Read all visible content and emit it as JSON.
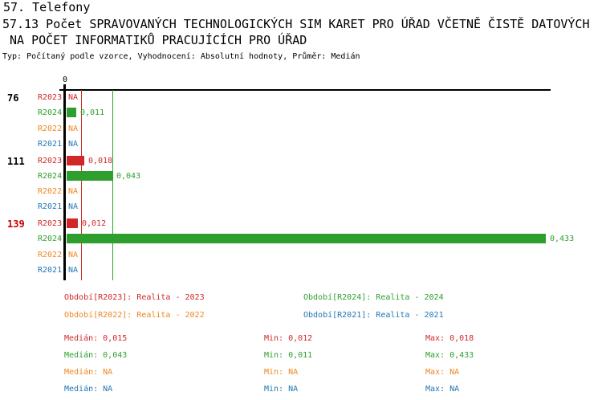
{
  "header": {
    "line1": "57. Telefony",
    "line2": "57.13 Počet SPRAVOVANÝCH TECHNOLOGICKÝCH SIM KARET PRO ÚŘAD VČETNĚ ČISTĚ DATOVÝCH",
    "line3": " NA POČET INFORMATIKŮ PRACUJÍCÍCH PRO ÚŘAD",
    "meta": "Typ: Počítaný podle vzorce, Vyhodnocení: Absolutní hodnoty, Průměr: Medián"
  },
  "series_colors": {
    "R2023": "#d02828",
    "R2024": "#2e9f2e",
    "R2022": "#ee8822",
    "R2021": "#2277b4"
  },
  "highlight_color": "#cc0000",
  "chart_data": {
    "type": "bar",
    "orientation": "horizontal",
    "title": "57.13 Počet SPRAVOVANÝCH TECHNOLOGICKÝCH SIM KARET PRO ÚŘAD VČETNĚ ČISTĚ DATOVÝCH NA POČET INFORMATIKŮ PRACUJÍCÍCH PRO ÚŘAD",
    "value_format": "decimal-comma",
    "na_text": "NA",
    "x_axis": {
      "zero_tick_label": "0",
      "min": 0,
      "max_value_shown": 0.433
    },
    "series_order": [
      "R2023",
      "R2024",
      "R2022",
      "R2021"
    ],
    "groups": [
      {
        "label": "76",
        "highlighted": false,
        "bars": [
          {
            "series": "R2023",
            "value": null,
            "display": "NA"
          },
          {
            "series": "R2024",
            "value": 0.011,
            "display": "0,011"
          },
          {
            "series": "R2022",
            "value": null,
            "display": "NA"
          },
          {
            "series": "R2021",
            "value": null,
            "display": "NA"
          }
        ]
      },
      {
        "label": "111",
        "highlighted": false,
        "bars": [
          {
            "series": "R2023",
            "value": 0.018,
            "display": "0,018"
          },
          {
            "series": "R2024",
            "value": 0.043,
            "display": "0,043"
          },
          {
            "series": "R2022",
            "value": null,
            "display": "NA"
          },
          {
            "series": "R2021",
            "value": null,
            "display": "NA"
          }
        ]
      },
      {
        "label": "139",
        "highlighted": true,
        "bars": [
          {
            "series": "R2023",
            "value": 0.012,
            "display": "0,012"
          },
          {
            "series": "R2024",
            "value": 0.433,
            "display": "0,433"
          },
          {
            "series": "R2022",
            "value": null,
            "display": "NA"
          },
          {
            "series": "R2021",
            "value": null,
            "display": "NA"
          }
        ]
      }
    ],
    "median_lines": [
      {
        "series": "R2023",
        "value": 0.015
      },
      {
        "series": "R2024",
        "value": 0.043
      }
    ]
  },
  "legend": {
    "items": [
      {
        "series": "R2023",
        "text": "Období[R2023]: Realita - 2023"
      },
      {
        "series": "R2024",
        "text": "Období[R2024]: Realita - 2024"
      },
      {
        "series": "R2022",
        "text": "Období[R2022]: Realita - 2022"
      },
      {
        "series": "R2021",
        "text": "Období[R2021]: Realita - 2021"
      }
    ]
  },
  "stats": {
    "median_label": "Medián",
    "min_label": "Min",
    "max_label": "Max",
    "rows": [
      {
        "series": "R2023",
        "median": "0,015",
        "min": "0,012",
        "max": "0,018"
      },
      {
        "series": "R2024",
        "median": "0,043",
        "min": "0,011",
        "max": "0,433"
      },
      {
        "series": "R2022",
        "median": "NA",
        "min": "NA",
        "max": "NA"
      },
      {
        "series": "R2021",
        "median": "NA",
        "min": "NA",
        "max": "NA"
      }
    ]
  }
}
